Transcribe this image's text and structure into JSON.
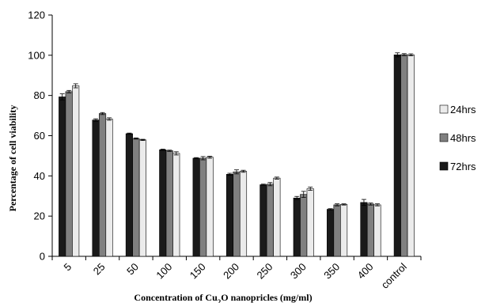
{
  "chart_data": {
    "type": "bar",
    "categories": [
      "5",
      "25",
      "50",
      "100",
      "150",
      "200",
      "250",
      "300",
      "350",
      "400",
      "control"
    ],
    "series": [
      {
        "name": "72hrs",
        "color": "#1a1a1a",
        "values": [
          79.3,
          67.8,
          61.0,
          53.0,
          48.8,
          40.8,
          35.6,
          29.0,
          23.4,
          26.8,
          100.2
        ]
      },
      {
        "name": "48hrs",
        "color": "#808080",
        "values": [
          81.9,
          71.0,
          58.6,
          52.5,
          48.8,
          42.0,
          35.9,
          30.8,
          25.6,
          26.0,
          100.3
        ]
      },
      {
        "name": "24hrs",
        "color": "#ebebeb",
        "values": [
          84.8,
          68.3,
          57.9,
          51.2,
          49.3,
          42.3,
          38.9,
          33.6,
          25.8,
          25.6,
          100.2
        ]
      }
    ],
    "errors": [
      [
        1.5,
        0.6,
        0.3,
        0.3,
        0.3,
        0.5,
        0.3,
        0.8,
        0.3,
        1.5,
        1.0
      ],
      [
        0.6,
        0.5,
        0.3,
        0.3,
        0.8,
        1.0,
        0.8,
        1.5,
        0.5,
        0.5,
        0.5
      ],
      [
        1.0,
        0.6,
        0.3,
        0.8,
        0.5,
        0.5,
        0.5,
        0.8,
        0.3,
        0.5,
        0.5
      ]
    ],
    "ylabel": "Percentage of cell viability",
    "xlabel": {
      "prefix": "Concentration of Cu",
      "subscript": "2",
      "suffix": "O nanopricles (mg/ml)"
    },
    "ylim": [
      0,
      120
    ],
    "yticks": [
      0,
      20,
      40,
      60,
      80,
      100,
      120
    ],
    "legend_order": [
      "24hrs",
      "48hrs",
      "72hrs"
    ],
    "legend_position": "right",
    "grid": false
  }
}
